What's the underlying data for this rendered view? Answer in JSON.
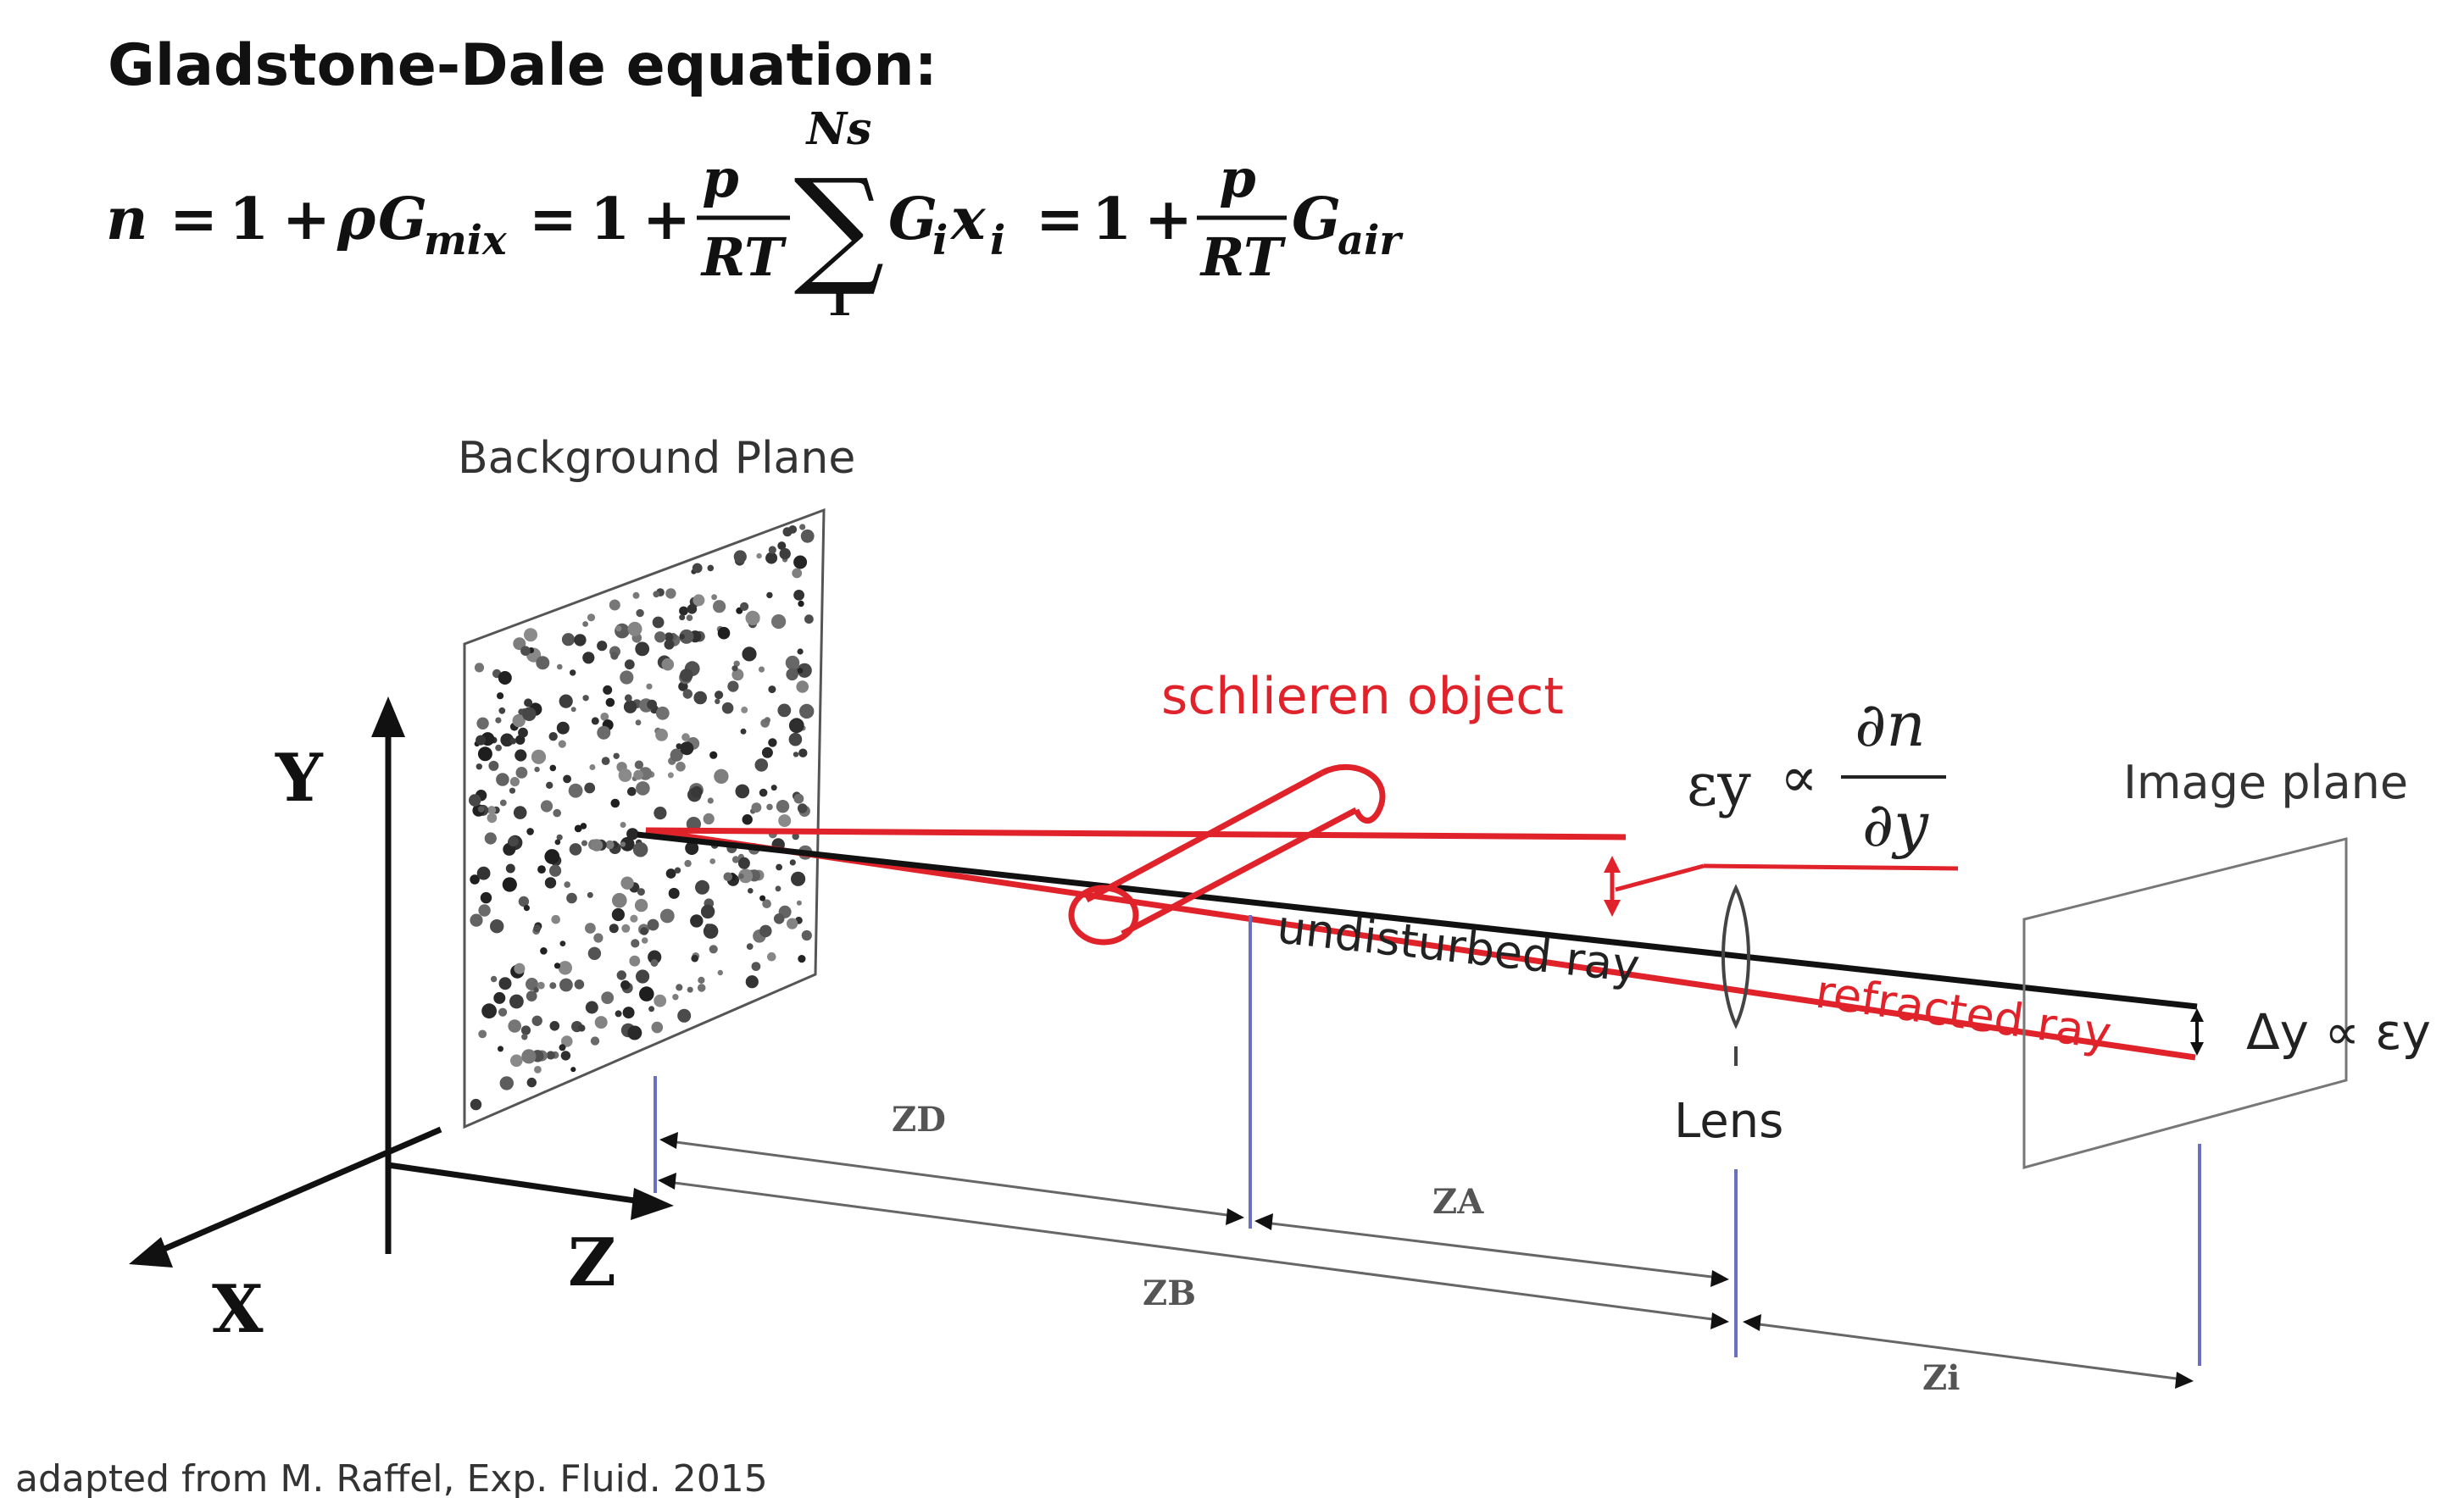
{
  "title": "Gladstone-Dale equation:",
  "equation": {
    "n": "n",
    "eq1": "=",
    "one_a": "1",
    "plus_a": "+",
    "rho": "ρ",
    "G_mix": "G",
    "mix_sub": "mix",
    "eq2": "=",
    "one_b": "1",
    "plus_b": "+",
    "frac1_num": "p",
    "frac1_den": "RT",
    "sum_upper": "Ns",
    "sum_symbol": "∑",
    "sum_lower": "1",
    "G_i": "G",
    "i_sub1": "i",
    "x_i": "x",
    "i_sub2": "i",
    "eq3": "=",
    "one_c": "1",
    "plus_c": "+",
    "frac2_num": "p",
    "frac2_den": "RT",
    "G_air": "G",
    "air_sub": "air"
  },
  "diagram": {
    "background_plane": "Background Plane",
    "schlieren_object": "schlieren object",
    "undisturbed_ray": "undisturbed ray",
    "refracted_ray": "refracted ray",
    "lens": "Lens",
    "image_plane": "Image plane",
    "epsilon_y": "εy",
    "proportional": "∝",
    "partial_n": "∂n",
    "partial_y": "∂y",
    "delta_y_label": "Δy ∝ εy",
    "axis_y": "Y",
    "axis_x": "X",
    "axis_z": "Z",
    "z_d": "ZD",
    "z_a": "ZA",
    "z_b": "ZB",
    "z_i": "Zi"
  },
  "caption": "adapted from M. Raffel, Exp. Fluid. 2015",
  "colors": {
    "red": "#e0232b",
    "black": "#111111",
    "blue_line": "#6b6fbf",
    "gray": "#666666"
  }
}
